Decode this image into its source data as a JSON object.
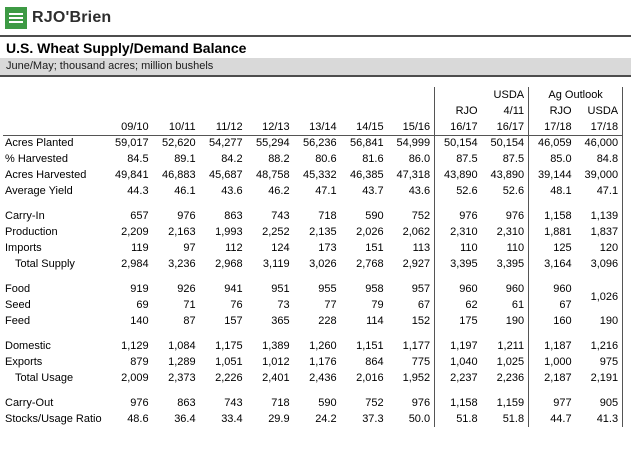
{
  "logo": {
    "text": "RJO'Brien"
  },
  "colors": {
    "brand_green": "#3d9a44",
    "subtitle_bg": "#d9d9d9",
    "rule_dark": "#4d4d4d"
  },
  "header": {
    "title": "U.S. Wheat Supply/Demand Balance",
    "subtitle": "June/May; thousand acres; million bushels"
  },
  "table": {
    "group_header": {
      "usda": "USDA",
      "ag_outlook": "Ag Outlook"
    },
    "source_header": [
      "RJO",
      "4/11",
      "RJO",
      "USDA"
    ],
    "years": [
      "09/10",
      "10/11",
      "11/12",
      "12/13",
      "13/14",
      "14/15",
      "15/16",
      "16/17",
      "16/17",
      "17/18",
      "17/18"
    ],
    "rows": [
      {
        "label": "Acres Planted",
        "values": [
          "59,017",
          "52,620",
          "54,277",
          "55,294",
          "56,236",
          "56,841",
          "54,999",
          "50,154",
          "50,154",
          "46,059",
          "46,000"
        ]
      },
      {
        "label": "% Harvested",
        "values": [
          "84.5",
          "89.1",
          "84.2",
          "88.2",
          "80.6",
          "81.6",
          "86.0",
          "87.5",
          "87.5",
          "85.0",
          "84.8"
        ]
      },
      {
        "label": "Acres Harvested",
        "values": [
          "49,841",
          "46,883",
          "45,687",
          "48,758",
          "45,332",
          "46,385",
          "47,318",
          "43,890",
          "43,890",
          "39,144",
          "39,000"
        ]
      },
      {
        "label": "Average Yield",
        "values": [
          "44.3",
          "46.1",
          "43.6",
          "46.2",
          "47.1",
          "43.7",
          "43.6",
          "52.6",
          "52.6",
          "48.1",
          "47.1"
        ]
      },
      {
        "spacer": true
      },
      {
        "label": "Carry-In",
        "values": [
          "657",
          "976",
          "863",
          "743",
          "718",
          "590",
          "752",
          "976",
          "976",
          "1,158",
          "1,139"
        ]
      },
      {
        "label": "Production",
        "values": [
          "2,209",
          "2,163",
          "1,993",
          "2,252",
          "2,135",
          "2,026",
          "2,062",
          "2,310",
          "2,310",
          "1,881",
          "1,837"
        ]
      },
      {
        "label": "Imports",
        "values": [
          "119",
          "97",
          "112",
          "124",
          "173",
          "151",
          "113",
          "110",
          "110",
          "125",
          "120"
        ]
      },
      {
        "label": "Total Supply",
        "indent": true,
        "values": [
          "2,984",
          "3,236",
          "2,968",
          "3,119",
          "3,026",
          "2,768",
          "2,927",
          "3,395",
          "3,395",
          "3,164",
          "3,096"
        ]
      },
      {
        "spacer": true
      },
      {
        "label": "Food",
        "values": [
          "919",
          "926",
          "941",
          "951",
          "955",
          "958",
          "957",
          "960",
          "960",
          "960"
        ],
        "rowspan_last": "1,026"
      },
      {
        "label": "Seed",
        "values": [
          "69",
          "71",
          "76",
          "73",
          "77",
          "79",
          "67",
          "62",
          "61",
          "67"
        ],
        "skip_last": true
      },
      {
        "label": "Feed",
        "values": [
          "140",
          "87",
          "157",
          "365",
          "228",
          "114",
          "152",
          "175",
          "190",
          "160",
          "190"
        ]
      },
      {
        "spacer": true
      },
      {
        "label": "Domestic",
        "values": [
          "1,129",
          "1,084",
          "1,175",
          "1,389",
          "1,260",
          "1,151",
          "1,177",
          "1,197",
          "1,211",
          "1,187",
          "1,216"
        ]
      },
      {
        "label": "Exports",
        "values": [
          "879",
          "1,289",
          "1,051",
          "1,012",
          "1,176",
          "864",
          "775",
          "1,040",
          "1,025",
          "1,000",
          "975"
        ]
      },
      {
        "label": "Total Usage",
        "indent": true,
        "values": [
          "2,009",
          "2,373",
          "2,226",
          "2,401",
          "2,436",
          "2,016",
          "1,952",
          "2,237",
          "2,236",
          "2,187",
          "2,191"
        ]
      },
      {
        "spacer": true
      },
      {
        "label": "Carry-Out",
        "values": [
          "976",
          "863",
          "743",
          "718",
          "590",
          "752",
          "976",
          "1,158",
          "1,159",
          "977",
          "905"
        ]
      },
      {
        "label": "Stocks/Usage Ratio",
        "values": [
          "48.6",
          "36.4",
          "33.4",
          "29.9",
          "24.2",
          "37.3",
          "50.0",
          "51.8",
          "51.8",
          "44.7",
          "41.3"
        ]
      }
    ]
  }
}
